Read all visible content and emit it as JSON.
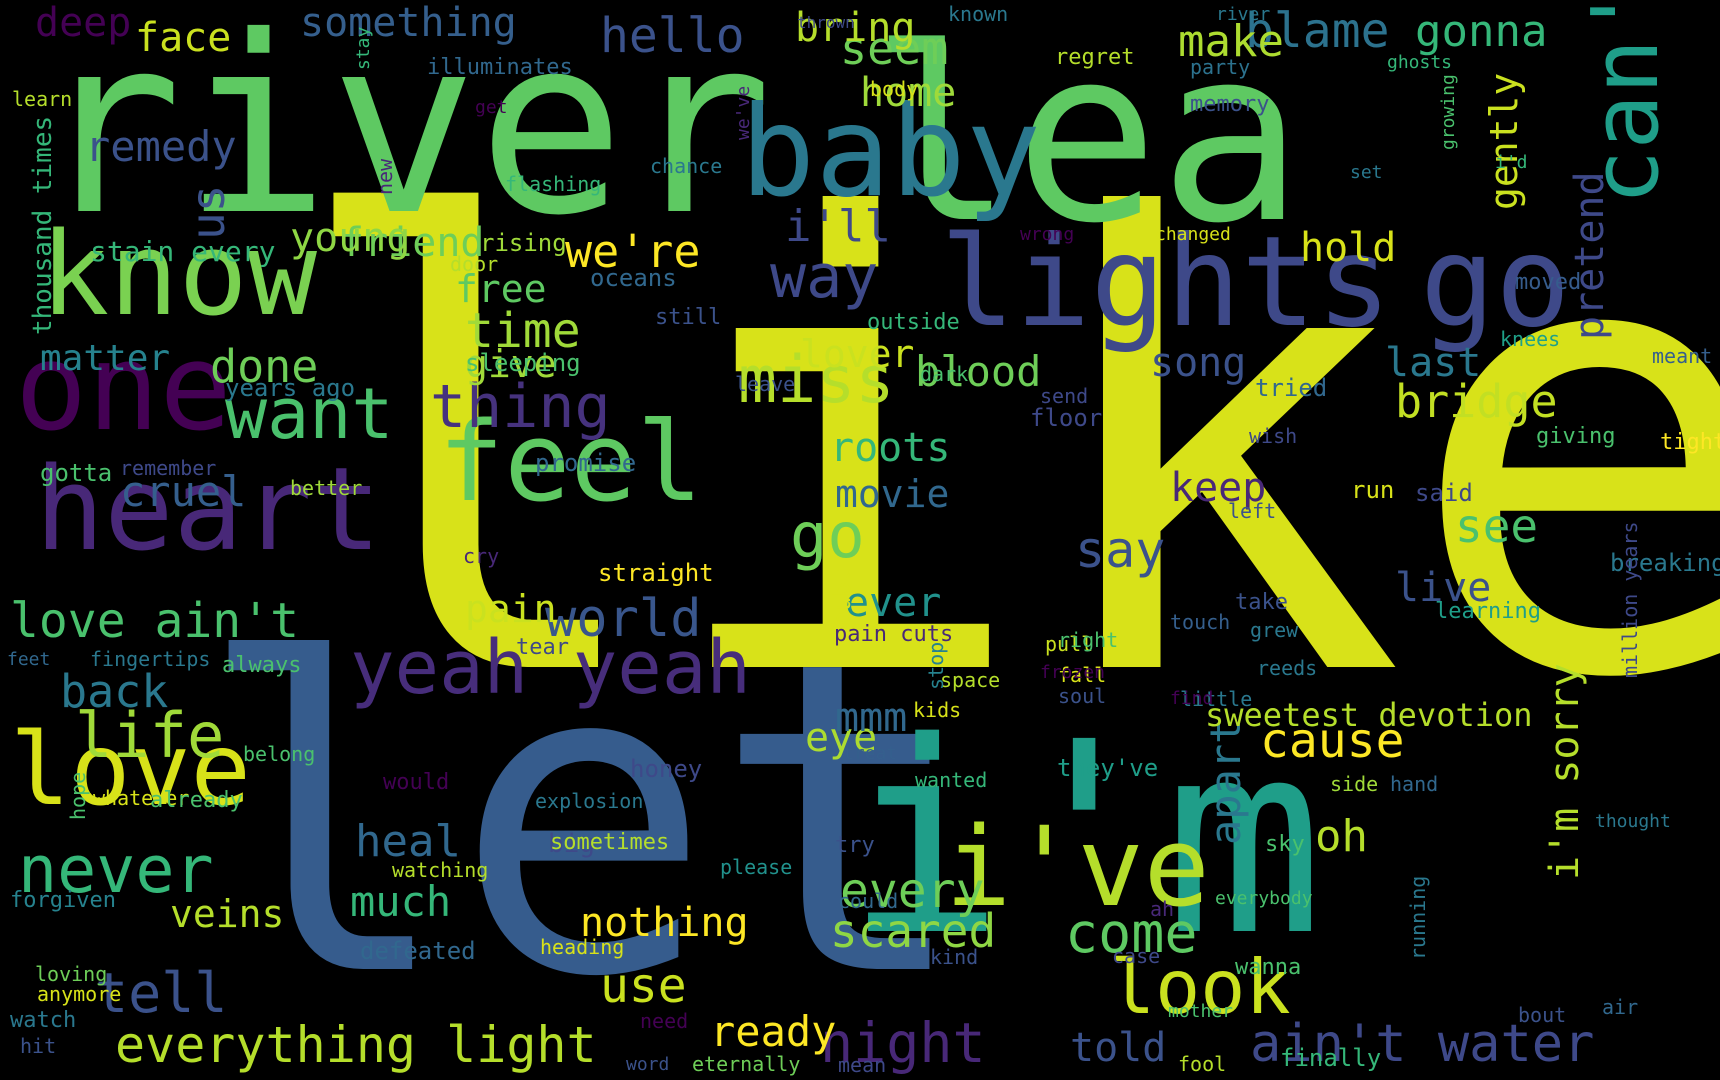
{
  "background": "#000000",
  "words": [
    {
      "text": "like",
      "color": "#d8e219"
    },
    {
      "text": "let",
      "color": "#365c8d"
    },
    {
      "text": "river",
      "color": "#5ec962"
    },
    {
      "text": "lea",
      "color": "#5ec962"
    },
    {
      "text": "i'm",
      "color": "#1f9e89"
    },
    {
      "text": "baby",
      "color": "#2a788e"
    },
    {
      "text": "lights",
      "color": "#3e4989"
    },
    {
      "text": "go",
      "color": "#3e4989"
    },
    {
      "text": "know",
      "color": "#7ad151"
    },
    {
      "text": "one",
      "color": "#440154"
    },
    {
      "text": "heart",
      "color": "#482878"
    },
    {
      "text": "feel",
      "color": "#5ec962"
    },
    {
      "text": "can't",
      "color": "#1f9e89"
    },
    {
      "text": "love",
      "color": "#d8e219"
    },
    {
      "text": "i've",
      "color": "#b5de2b"
    },
    {
      "text": "yeah yeah",
      "color": "#472d7b"
    },
    {
      "text": "want",
      "color": "#4ac16d"
    },
    {
      "text": "miss",
      "color": "#b5de2b"
    },
    {
      "text": "never",
      "color": "#35b779"
    },
    {
      "text": "life",
      "color": "#a0da39"
    },
    {
      "text": "look",
      "color": "#cae11f"
    },
    {
      "text": "everything light",
      "color": "#b5de2b"
    },
    {
      "text": "ain't water",
      "color": "#3e4989"
    },
    {
      "text": "thing",
      "color": "#46327e"
    },
    {
      "text": "way",
      "color": "#3e4989"
    },
    {
      "text": "go",
      "color": "#6ece58"
    },
    {
      "text": "come",
      "color": "#5ec962"
    },
    {
      "text": "say",
      "color": "#3b528b"
    },
    {
      "text": "night",
      "color": "#482878"
    },
    {
      "text": "world",
      "color": "#39568c"
    },
    {
      "text": "tell",
      "color": "#3b528b"
    },
    {
      "text": "use",
      "color": "#cae11f"
    },
    {
      "text": "love ain't",
      "color": "#4ac16d"
    },
    {
      "text": "done",
      "color": "#6ece58"
    },
    {
      "text": "remedy",
      "color": "#3b528b"
    },
    {
      "text": "cruel",
      "color": "#355f8d"
    },
    {
      "text": "back",
      "color": "#2a788e"
    },
    {
      "text": "time",
      "color": "#a0da39"
    },
    {
      "text": "blood",
      "color": "#6ece58"
    },
    {
      "text": "bridge",
      "color": "#c2df23"
    },
    {
      "text": "cause",
      "color": "#fde725"
    },
    {
      "text": "see",
      "color": "#4ac16d"
    },
    {
      "text": "hello",
      "color": "#3b528b"
    },
    {
      "text": "seem",
      "color": "#6ece58"
    },
    {
      "text": "blame",
      "color": "#2c728e"
    },
    {
      "text": "gonna",
      "color": "#35b779"
    },
    {
      "text": "make",
      "color": "#addc30"
    },
    {
      "text": "bring",
      "color": "#b5de2b"
    },
    {
      "text": "face",
      "color": "#cae11f"
    },
    {
      "text": "something",
      "color": "#355f8d"
    },
    {
      "text": "deep",
      "color": "#440154"
    },
    {
      "text": "home",
      "color": "#9fda3a"
    },
    {
      "text": "friend",
      "color": "#6ece58"
    },
    {
      "text": "us",
      "color": "#3b528b"
    },
    {
      "text": "young",
      "color": "#8fd744"
    },
    {
      "text": "we're",
      "color": "#fde725"
    },
    {
      "text": "i'll",
      "color": "#3e4989"
    },
    {
      "text": "hold",
      "color": "#d8e219"
    },
    {
      "text": "pretend",
      "color": "#3e4989"
    },
    {
      "text": "gently",
      "color": "#cae11f"
    },
    {
      "text": "free",
      "color": "#5ec962"
    },
    {
      "text": "matter",
      "color": "#26828e"
    },
    {
      "text": "give",
      "color": "#a0da39"
    },
    {
      "text": "lover",
      "color": "#cae11f"
    },
    {
      "text": "song",
      "color": "#3b528b"
    },
    {
      "text": "last",
      "color": "#2a788e"
    },
    {
      "text": "roots",
      "color": "#35b779"
    },
    {
      "text": "movie",
      "color": "#31688e"
    },
    {
      "text": "keep",
      "color": "#482878"
    },
    {
      "text": "pain",
      "color": "#cae11f"
    },
    {
      "text": "ever",
      "color": "#21918c"
    },
    {
      "text": "live",
      "color": "#3b528b"
    },
    {
      "text": "heal",
      "color": "#31688e"
    },
    {
      "text": "every",
      "color": "#6ece58"
    },
    {
      "text": "apart",
      "color": "#2a788e"
    },
    {
      "text": "eye",
      "color": "#addc30"
    },
    {
      "text": "oh",
      "color": "#b5de2b"
    },
    {
      "text": "mmm",
      "color": "#31688e"
    },
    {
      "text": "i'm sorry",
      "color": "#b5de2b"
    },
    {
      "text": "much",
      "color": "#35b779"
    },
    {
      "text": "scared",
      "color": "#8fd744"
    },
    {
      "text": "veins",
      "color": "#b5de2b"
    },
    {
      "text": "nothing",
      "color": "#fde725"
    },
    {
      "text": "ready",
      "color": "#fde725"
    },
    {
      "text": "told",
      "color": "#3b528b"
    },
    {
      "text": "sweetest devotion",
      "color": "#b5de2b"
    },
    {
      "text": "stain every",
      "color": "#35b779"
    },
    {
      "text": "thousand times",
      "color": "#35b779"
    },
    {
      "text": "rising",
      "color": "#9fda3a"
    },
    {
      "text": "door",
      "color": "#b5de2b"
    },
    {
      "text": "oceans",
      "color": "#31688e"
    },
    {
      "text": "still",
      "color": "#3b528b"
    },
    {
      "text": "sleeping",
      "color": "#4ac16d"
    },
    {
      "text": "years ago",
      "color": "#2a788e"
    },
    {
      "text": "outside",
      "color": "#35b779"
    },
    {
      "text": "dark",
      "color": "#4ac16d"
    },
    {
      "text": "leave",
      "color": "#3b528b"
    },
    {
      "text": "floor",
      "color": "#3e4989"
    },
    {
      "text": "send",
      "color": "#3e4989"
    },
    {
      "text": "tried",
      "color": "#31688e"
    },
    {
      "text": "moved",
      "color": "#365c8d"
    },
    {
      "text": "knees",
      "color": "#1fa088"
    },
    {
      "text": "meant",
      "color": "#355f8d"
    },
    {
      "text": "tight",
      "color": "#fde725"
    },
    {
      "text": "giving",
      "color": "#4ac16d"
    },
    {
      "text": "wish",
      "color": "#3e4989"
    },
    {
      "text": "breaking",
      "color": "#2a788e"
    },
    {
      "text": "promise",
      "color": "#31688e"
    },
    {
      "text": "better",
      "color": "#a0da39"
    },
    {
      "text": "gotta",
      "color": "#4ac16d"
    },
    {
      "text": "remember",
      "color": "#3e4989"
    },
    {
      "text": "left",
      "color": "#3b528b"
    },
    {
      "text": "cry",
      "color": "#482878"
    },
    {
      "text": "straight",
      "color": "#fde725"
    },
    {
      "text": "run",
      "color": "#d8e219"
    },
    {
      "text": "said",
      "color": "#3e4989"
    },
    {
      "text": "take",
      "color": "#3b528b"
    },
    {
      "text": "grew",
      "color": "#2a788e"
    },
    {
      "text": "learning",
      "color": "#1f9e89"
    },
    {
      "text": "touch",
      "color": "#355f8d"
    },
    {
      "text": "tear",
      "color": "#3e4989"
    },
    {
      "text": "doubt",
      "color": "#d8e219"
    },
    {
      "text": "pain cuts",
      "color": "#482878"
    },
    {
      "text": "pull",
      "color": "#cae11f"
    },
    {
      "text": "right",
      "color": "#4ac16d"
    },
    {
      "text": "fall",
      "color": "#d8e219"
    },
    {
      "text": "reeds",
      "color": "#2a788e"
    },
    {
      "text": "soul",
      "color": "#3b528b"
    },
    {
      "text": "frozen",
      "color": "#440154"
    },
    {
      "text": "million years",
      "color": "#3e4989"
    },
    {
      "text": "feet",
      "color": "#31688e"
    },
    {
      "text": "fingertips",
      "color": "#2a788e"
    },
    {
      "text": "always",
      "color": "#4ac16d"
    },
    {
      "text": "space",
      "color": "#b5de2b"
    },
    {
      "text": "kids",
      "color": "#d8e219"
    },
    {
      "text": "little",
      "color": "#2a788e"
    },
    {
      "text": "find",
      "color": "#440154"
    },
    {
      "text": "stop",
      "color": "#26828e"
    },
    {
      "text": "belong",
      "color": "#4ac16d"
    },
    {
      "text": "treat",
      "color": "#355f8d"
    },
    {
      "text": "they've",
      "color": "#1f9e89"
    },
    {
      "text": "honey",
      "color": "#3e4989"
    },
    {
      "text": "explosion",
      "color": "#2a788e"
    },
    {
      "text": "wanted",
      "color": "#35b779"
    },
    {
      "text": "hope",
      "color": "#4ac16d"
    },
    {
      "text": "whatever",
      "color": "#d8e219"
    },
    {
      "text": "already",
      "color": "#4ac16d"
    },
    {
      "text": "would",
      "color": "#440154"
    },
    {
      "text": "side",
      "color": "#a0da39"
    },
    {
      "text": "hand",
      "color": "#31688e"
    },
    {
      "text": "big",
      "color": "#3e4989"
    },
    {
      "text": "sometimes",
      "color": "#b5de2b"
    },
    {
      "text": "thought",
      "color": "#2a788e"
    },
    {
      "text": "try",
      "color": "#3b528b"
    },
    {
      "text": "sky",
      "color": "#4ac16d"
    },
    {
      "text": "please",
      "color": "#21918c"
    },
    {
      "text": "watching",
      "color": "#b5de2b"
    },
    {
      "text": "could",
      "color": "#31688e"
    },
    {
      "text": "ah",
      "color": "#482878"
    },
    {
      "text": "everybody",
      "color": "#4ac16d"
    },
    {
      "text": "forgiven",
      "color": "#26828e"
    },
    {
      "text": "running",
      "color": "#2a788e"
    },
    {
      "text": "defeated",
      "color": "#31688e"
    },
    {
      "text": "heading",
      "color": "#d8e219"
    },
    {
      "text": "kind",
      "color": "#3b528b"
    },
    {
      "text": "case",
      "color": "#3e4989"
    },
    {
      "text": "wanna",
      "color": "#4ac16d"
    },
    {
      "text": "loving",
      "color": "#6ece58"
    },
    {
      "text": "anymore",
      "color": "#d8e219"
    },
    {
      "text": "watch",
      "color": "#2a788e"
    },
    {
      "text": "hit",
      "color": "#3b528b"
    },
    {
      "text": "need",
      "color": "#440154"
    },
    {
      "text": "word",
      "color": "#3b528b"
    },
    {
      "text": "eternally",
      "color": "#6ece58"
    },
    {
      "text": "mean",
      "color": "#3e4989"
    },
    {
      "text": "mother",
      "color": "#4ac16d"
    },
    {
      "text": "fool",
      "color": "#b5de2b"
    },
    {
      "text": "finally",
      "color": "#35b779"
    },
    {
      "text": "bout",
      "color": "#3b528b"
    },
    {
      "text": "air",
      "color": "#31688e"
    },
    {
      "text": "learn",
      "color": "#b5de2b"
    },
    {
      "text": "get",
      "color": "#440154"
    },
    {
      "text": "flashing",
      "color": "#35b779"
    },
    {
      "text": "new",
      "color": "#482878"
    },
    {
      "text": "stay",
      "color": "#35b779"
    },
    {
      "text": "illuminates",
      "color": "#31688e"
    },
    {
      "text": "known",
      "color": "#2a788e"
    },
    {
      "text": "thrown",
      "color": "#3e4989"
    },
    {
      "text": "river",
      "color": "#2a788e"
    },
    {
      "text": "regret",
      "color": "#b5de2b"
    },
    {
      "text": "party",
      "color": "#2c728e"
    },
    {
      "text": "ghosts",
      "color": "#35b779"
    },
    {
      "text": "body",
      "color": "#d8e219"
    },
    {
      "text": "memory",
      "color": "#3b528b"
    },
    {
      "text": "we've",
      "color": "#482878"
    },
    {
      "text": "growing",
      "color": "#4ac16d"
    },
    {
      "text": "chance",
      "color": "#2a788e"
    },
    {
      "text": "set",
      "color": "#2a788e"
    },
    {
      "text": "i'd",
      "color": "#35b779"
    },
    {
      "text": "wrong",
      "color": "#440154"
    },
    {
      "text": "changed",
      "color": "#d8e219"
    }
  ]
}
